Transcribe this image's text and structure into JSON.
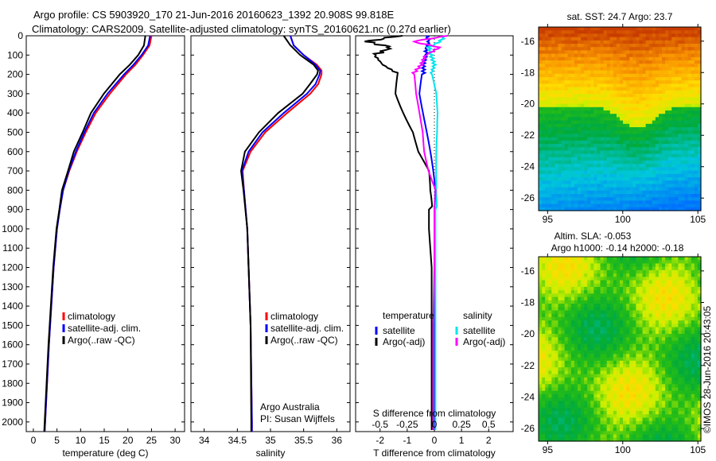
{
  "header": {
    "line1": "Argo profile: CS 5903920_170 21-Jun-2016 20160623_1392 20.908S 99.818E",
    "line2": "Climatology: CARS2009. Satellite-adjusted climatology: synTS_20160621.nc (0.27d earlier)"
  },
  "side_label": "©IMOS 28-Jun-2016 20:43:05",
  "colors": {
    "climatology": "#ff0000",
    "satellite": "#0000ff",
    "argo": "#000000",
    "sal_satellite": "#00e5ee",
    "sal_argo": "#ff00ff"
  },
  "chart_data": [
    {
      "type": "line",
      "xlabel": "temperature (deg C)",
      "xlim": [
        -1.5,
        32
      ],
      "ylim": [
        0,
        2050
      ],
      "xticks": [
        "0",
        "5",
        "10",
        "15",
        "20",
        "25",
        "30"
      ],
      "yticks": [
        "0",
        "100",
        "200",
        "300",
        "400",
        "500",
        "600",
        "700",
        "800",
        "900",
        "1000",
        "1100",
        "1200",
        "1300",
        "1400",
        "1500",
        "1600",
        "1700",
        "1800",
        "1900",
        "2000"
      ],
      "depth": [
        0,
        50,
        100,
        150,
        200,
        300,
        400,
        500,
        600,
        700,
        800,
        900,
        1000,
        1200,
        1400,
        1600,
        1800,
        2000,
        2050
      ],
      "series": [
        {
          "name": "climatology",
          "values": [
            25,
            24.6,
            23.2,
            21.6,
            19.6,
            16.2,
            13.2,
            11.1,
            9.2,
            7.6,
            6.3,
            5.6,
            5.0,
            4.3,
            3.8,
            3.3,
            2.9,
            2.5,
            2.4
          ]
        },
        {
          "name": "satellite-adj. clim.",
          "values": [
            24.7,
            24.3,
            22.9,
            21.2,
            19.2,
            15.7,
            12.8,
            10.8,
            9.0,
            7.5,
            6.3,
            5.6,
            5.0,
            4.3,
            3.8,
            3.3,
            2.9,
            2.5,
            2.4
          ]
        },
        {
          "name": "Argo(..raw -QC)",
          "values": [
            23.7,
            23.4,
            22.2,
            20.4,
            18.3,
            14.9,
            12.2,
            10.4,
            8.6,
            7.3,
            6.1,
            5.5,
            4.9,
            4.2,
            3.7,
            3.2,
            2.8,
            2.4,
            2.3
          ]
        }
      ],
      "legend": [
        "climatology",
        "satellite-adj. clim.",
        "Argo(..raw -QC)"
      ]
    },
    {
      "type": "line",
      "xlabel": "salinity",
      "xlim": [
        33.8,
        36.2
      ],
      "ylim": [
        0,
        2050
      ],
      "xticks": [
        "34",
        "34.5",
        "35",
        "35.5",
        "36"
      ],
      "depth": [
        0,
        50,
        100,
        150,
        180,
        200,
        250,
        300,
        400,
        500,
        600,
        700,
        800,
        1000,
        1500,
        2000,
        2050
      ],
      "series": [
        {
          "name": "climatology",
          "values": [
            35.3,
            35.35,
            35.5,
            35.7,
            35.77,
            35.77,
            35.72,
            35.6,
            35.25,
            34.92,
            34.7,
            34.58,
            34.6,
            34.65,
            34.7,
            34.72,
            34.72
          ]
        },
        {
          "name": "satellite-adj. clim.",
          "values": [
            35.3,
            35.35,
            35.5,
            35.68,
            35.75,
            35.74,
            35.68,
            35.55,
            35.2,
            34.88,
            34.67,
            34.57,
            34.6,
            34.65,
            34.7,
            34.72,
            34.72
          ]
        },
        {
          "name": "Argo(..raw -QC)",
          "values": [
            35.2,
            35.3,
            35.45,
            35.65,
            35.72,
            35.7,
            35.6,
            35.48,
            35.12,
            34.82,
            34.62,
            34.55,
            34.6,
            34.65,
            34.7,
            34.71,
            34.71
          ]
        }
      ],
      "legend": [
        "climatology",
        "satellite-adj. clim.",
        "Argo(..raw -QC)"
      ],
      "annotation": [
        "Argo Australia",
        "PI: Susan Wijffels"
      ]
    },
    {
      "type": "line",
      "xlabel": "T difference from climatology",
      "xlabel2": "S difference from climatology",
      "xlim": [
        -2.9,
        2.9
      ],
      "ylim": [
        0,
        2050
      ],
      "xticks": [
        "-2",
        "-1",
        "0",
        "1",
        "2"
      ],
      "xticks2": [
        "-0.5",
        "-0.25",
        "0",
        "0.25",
        "0.5"
      ],
      "depth": [
        0,
        30,
        60,
        100,
        150,
        200,
        300,
        400,
        500,
        600,
        700,
        800,
        900,
        1000,
        1200,
        1500,
        2000,
        2050
      ],
      "series": [
        {
          "name": "T satellite",
          "values": [
            -0.3,
            -0.2,
            -0.3,
            -0.3,
            -0.4,
            -0.4,
            -0.5,
            -0.4,
            -0.3,
            -0.2,
            -0.1,
            0,
            0,
            0,
            0,
            0,
            0,
            0
          ]
        },
        {
          "name": "T Argo(-adj)",
          "values": [
            -1.3,
            -2.5,
            -1.6,
            -2.2,
            -1.9,
            -1.3,
            -1.3,
            -1.0,
            -0.7,
            -0.6,
            -0.3,
            -0.3,
            -0.2,
            -0.2,
            -0.1,
            -0.1,
            -0.1,
            -0.1
          ]
        },
        {
          "name": "S satellite",
          "values": [
            0.1,
            0.05,
            -0.05,
            -0.03,
            0.0,
            -0.03,
            0.02,
            0.04,
            0.04,
            0.03,
            0.02,
            0.01,
            0.01,
            0.01,
            0.01,
            0.01,
            0.01,
            0.01
          ]
        },
        {
          "name": "S Argo(-adj)",
          "values": [
            0.12,
            -0.2,
            0.05,
            -0.08,
            -0.12,
            -0.2,
            -0.18,
            -0.14,
            -0.1,
            -0.08,
            -0.04,
            0.02,
            0.0,
            0.0,
            0.0,
            -0.01,
            -0.01,
            -0.01
          ]
        }
      ],
      "legend": {
        "temperature": "temperature",
        "salinity": "salinity",
        "items": [
          "satellite",
          "Argo(-adj)",
          "satellite",
          "Argo(-adj)"
        ]
      }
    }
  ],
  "maps": [
    {
      "title": "sat. SST: 24.7 Argo: 23.7",
      "xticks": [
        "95",
        "100",
        "105"
      ],
      "yticks": [
        "-16",
        "-18",
        "-20",
        "-22",
        "-24",
        "-26"
      ],
      "marker": [
        99.818,
        -20.908
      ]
    },
    {
      "title1": "Altim. SLA: -0.053",
      "title2": "Argo h1000: -0.14 h2000: -0.18",
      "xticks": [
        "95",
        "100",
        "105"
      ],
      "yticks": [
        "-16",
        "-18",
        "-20",
        "-22",
        "-24",
        "-26"
      ],
      "marker": [
        99.818,
        -20.908
      ]
    }
  ]
}
